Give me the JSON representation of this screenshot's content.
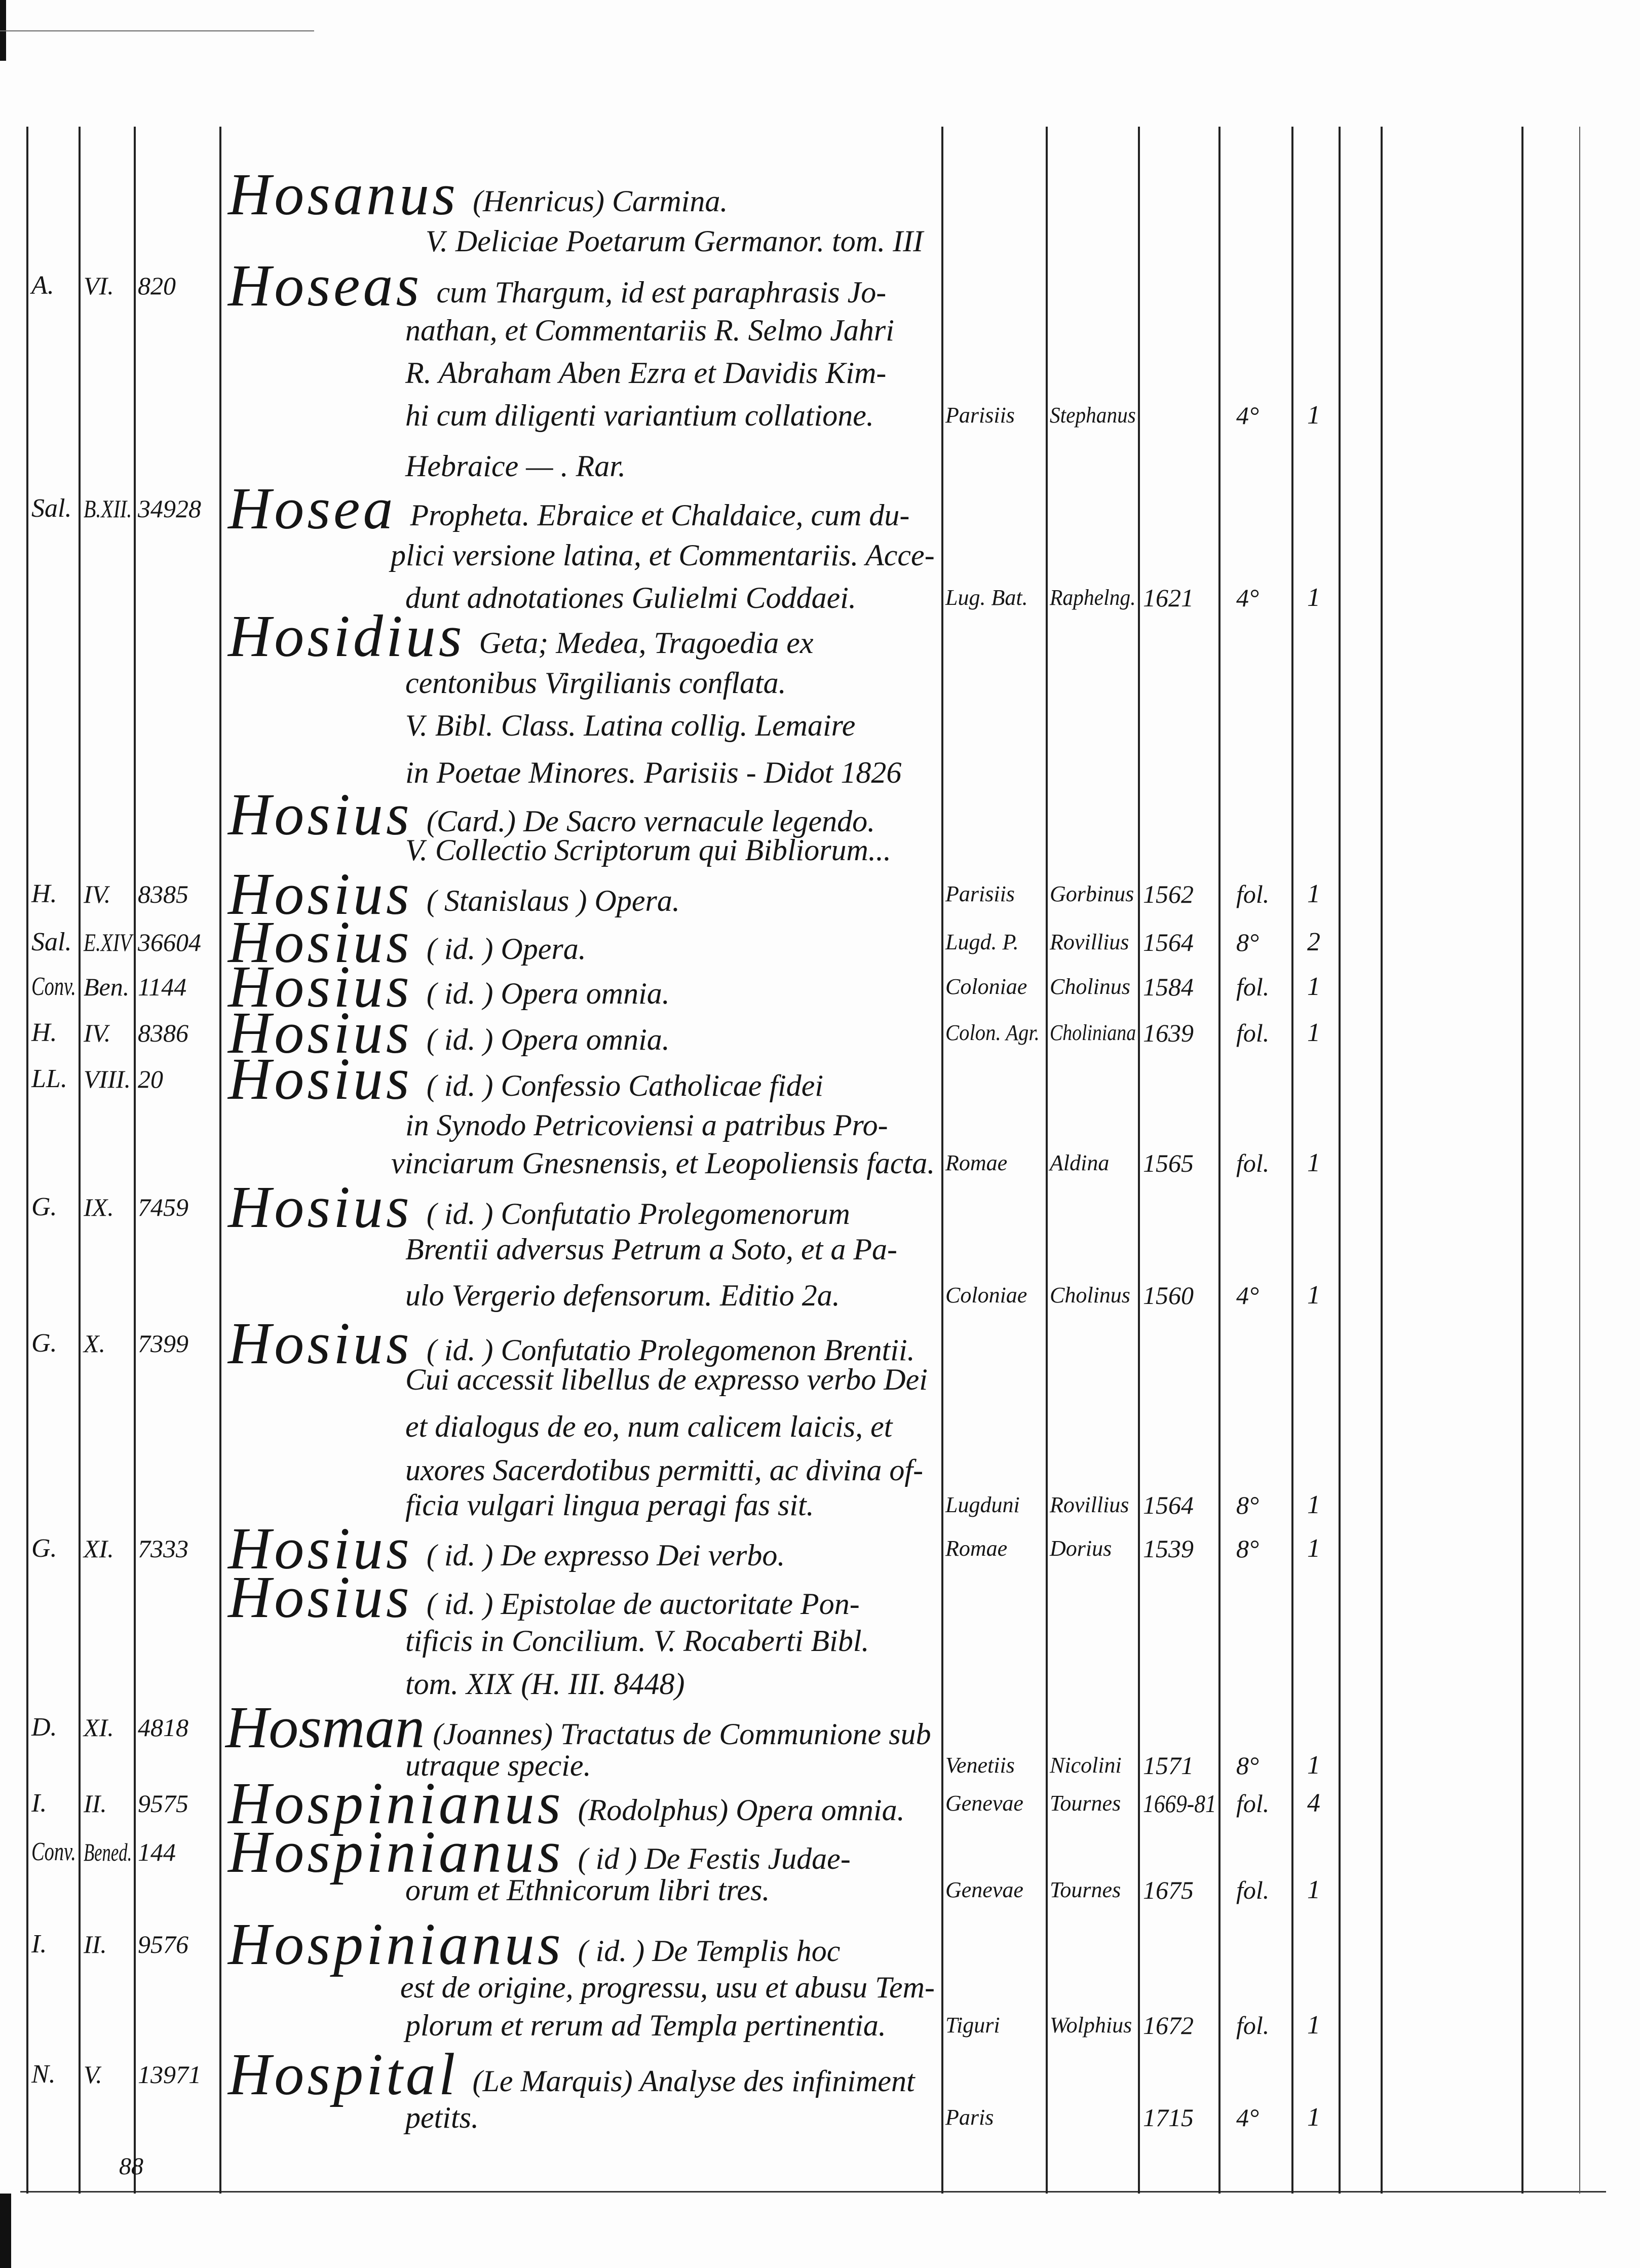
{
  "entries": [
    {
      "shelf": "",
      "section": "",
      "number": "",
      "head": "Hosanus",
      "lines": [
        "(Henricus) Carmina.",
        "V. Deliciae Poetarum Germanor. tom. III"
      ],
      "imprint": null
    },
    {
      "shelf": "A.",
      "section": "VI.",
      "number": "820",
      "head": "Hoseas",
      "lines": [
        "cum Thargum, id est paraphrasis Jo-",
        "nathan, et Commentariis R. Selmo Jahri",
        "R. Abraham Aben Ezra et Davidis Kim-",
        "hi cum diligenti variantium collatione.",
        "Hebraice — . Rar."
      ],
      "imprint": {
        "place": "Parisiis",
        "publisher": "Stephanus",
        "year": "",
        "format": "4°",
        "vols": "1"
      }
    },
    {
      "shelf": "Sal.",
      "section": "B.XII.",
      "number": "34928",
      "head": "Hosea",
      "lines": [
        "Propheta. Ebraice et Chaldaice, cum du-",
        "plici versione latina, et Commentariis. Acce-",
        "dunt adnotationes Gulielmi Coddaei."
      ],
      "imprint": {
        "place": "Lug. Bat.",
        "publisher": "Raphelng.",
        "year": "1621",
        "format": "4°",
        "vols": "1"
      }
    },
    {
      "shelf": "",
      "section": "",
      "number": "",
      "head": "Hosidius",
      "lines": [
        "Geta; Medea, Tragoedia ex",
        "centonibus Virgilianis conflata.",
        "V. Bibl. Class. Latina collig. Lemaire",
        "in Poetae Minores. Parisiis - Didot 1826"
      ],
      "imprint": null
    },
    {
      "shelf": "",
      "section": "",
      "number": "",
      "head": "Hosius",
      "lines": [
        "(Card.) De Sacro vernacule legendo.",
        "V. Collectio Scriptorum qui Bibliorum..."
      ],
      "imprint": null
    },
    {
      "shelf": "H.",
      "section": "IV.",
      "number": "8385",
      "head": "Hosius",
      "lines": [
        "( Stanislaus ) Opera."
      ],
      "imprint": {
        "place": "Parisiis",
        "publisher": "Gorbinus",
        "year": "1562",
        "format": "fol.",
        "vols": "1"
      }
    },
    {
      "shelf": "Sal.",
      "section": "E.XIV",
      "number": "36604",
      "head": "Hosius",
      "lines": [
        "( id. ) Opera."
      ],
      "imprint": {
        "place": "Lugd. P.",
        "publisher": "Rovillius",
        "year": "1564",
        "format": "8°",
        "vols": "2"
      }
    },
    {
      "shelf": "Conv.",
      "section": "Ben.",
      "number": "1144",
      "head": "Hosius",
      "lines": [
        "( id. ) Opera omnia."
      ],
      "imprint": {
        "place": "Coloniae",
        "publisher": "Cholinus",
        "year": "1584",
        "format": "fol.",
        "vols": "1"
      }
    },
    {
      "shelf": "H.",
      "section": "IV.",
      "number": "8386",
      "head": "Hosius",
      "lines": [
        "( id. ) Opera omnia."
      ],
      "imprint": {
        "place": "Colon. Agr.",
        "publisher": "Choliniana",
        "year": "1639",
        "format": "fol.",
        "vols": "1"
      }
    },
    {
      "shelf": "LL.",
      "section": "VIII.",
      "number": "20",
      "head": "Hosius",
      "lines": [
        "( id. ) Confessio Catholicae fidei",
        "in Synodo Petricoviensi a patribus Pro-",
        "vinciarum Gnesnensis, et Leopoliensis facta."
      ],
      "imprint": {
        "place": "Romae",
        "publisher": "Aldina",
        "year": "1565",
        "format": "fol.",
        "vols": "1"
      }
    },
    {
      "shelf": "G.",
      "section": "IX.",
      "number": "7459",
      "head": "Hosius",
      "lines": [
        "( id. ) Confutatio Prolegomenorum",
        "Brentii adversus Petrum a Soto, et a Pa-",
        "ulo Vergerio defensorum. Editio 2a."
      ],
      "imprint": {
        "place": "Coloniae",
        "publisher": "Cholinus",
        "year": "1560",
        "format": "4°",
        "vols": "1"
      }
    },
    {
      "shelf": "G.",
      "section": "X.",
      "number": "7399",
      "head": "Hosius",
      "lines": [
        "( id. ) Confutatio Prolegomenon Brentii.",
        "Cui accessit libellus de expresso verbo Dei",
        "et dialogus de eo, num calicem laicis, et",
        "uxores Sacerdotibus permitti, ac divina of-",
        "ficia vulgari lingua peragi fas sit."
      ],
      "imprint": {
        "place": "Lugduni",
        "publisher": "Rovillius",
        "year": "1564",
        "format": "8°",
        "vols": "1"
      }
    },
    {
      "shelf": "G.",
      "section": "XI.",
      "number": "7333",
      "head": "Hosius",
      "lines": [
        "( id. ) De expresso Dei verbo."
      ],
      "imprint": {
        "place": "Romae",
        "publisher": "Dorius",
        "year": "1539",
        "format": "8°",
        "vols": "1"
      }
    },
    {
      "shelf": "",
      "section": "",
      "number": "",
      "head": "Hosius",
      "lines": [
        "( id. ) Epistolae de auctoritate Pon-",
        "tificis in Concilium. V. Rocaberti Bibl.",
        "tom. XIX (H. III. 8448)"
      ],
      "imprint": null
    },
    {
      "shelf": "D.",
      "section": "XI.",
      "number": "4818",
      "head": "Hosman",
      "lines": [
        "(Joannes) Tractatus de Communione sub",
        "utraque specie."
      ],
      "imprint": {
        "place": "Venetiis",
        "publisher": "Nicolini",
        "year": "1571",
        "format": "8°",
        "vols": "1"
      }
    },
    {
      "shelf": "I.",
      "section": "II.",
      "number": "9575",
      "head": "Hospinianus",
      "lines": [
        "(Rodolphus) Opera omnia."
      ],
      "imprint": {
        "place": "Genevae",
        "publisher": "Tournes",
        "year": "1669-81",
        "format": "fol.",
        "vols": "4"
      }
    },
    {
      "shelf": "Conv.",
      "section": "Bened.",
      "number": "144",
      "head": "Hospinianus",
      "lines": [
        "( id ) De Festis Judae-",
        "orum et Ethnicorum libri tres."
      ],
      "imprint": {
        "place": "Genevae",
        "publisher": "Tournes",
        "year": "1675",
        "format": "fol.",
        "vols": "1"
      }
    },
    {
      "shelf": "I.",
      "section": "II.",
      "number": "9576",
      "head": "Hospinianus",
      "lines": [
        "( id. ) De Templis hoc",
        "est de origine, progressu, usu et abusu Tem-",
        "plorum et rerum ad Templa pertinentia."
      ],
      "imprint": {
        "place": "Tiguri",
        "publisher": "Wolphius",
        "year": "1672",
        "format": "fol.",
        "vols": "1"
      }
    },
    {
      "shelf": "N.",
      "section": "V.",
      "number": "13971",
      "head": "Hospital",
      "lines": [
        "(Le Marquis) Analyse des infiniment",
        "petits."
      ],
      "imprint": {
        "place": "Paris",
        "publisher": "",
        "year": "1715",
        "format": "4°",
        "vols": "1"
      }
    }
  ],
  "footer": {
    "page_number": "88"
  }
}
